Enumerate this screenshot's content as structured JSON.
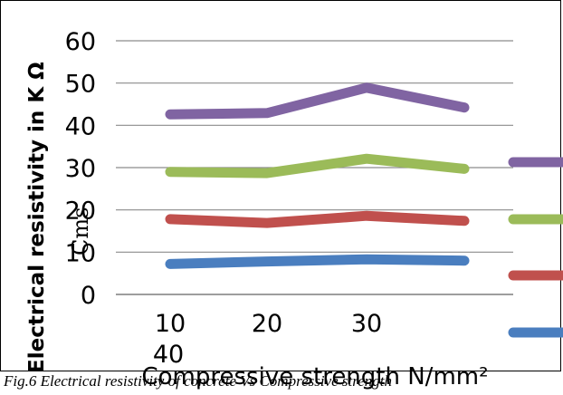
{
  "chart_data": {
    "type": "line",
    "xlabel": "Compressive strength N/mm²",
    "ylabel": "Electrical resistivity in K Ω",
    "ylabel_unit": "Cms",
    "y_ticks": [
      "0",
      "10",
      "20",
      "30",
      "40",
      "50",
      "60"
    ],
    "x_tick_labels": [
      "10",
      "20",
      "30"
    ],
    "x_tick_overflow": "40",
    "ylim": [
      0,
      60
    ],
    "grid": true,
    "legend_position": "right",
    "series": [
      {
        "values": [
          7.2,
          7.8,
          8.3,
          8.0
        ],
        "color": "#4a7ebf"
      },
      {
        "values": [
          17.8,
          16.9,
          18.6,
          17.4
        ],
        "color": "#c0504d"
      },
      {
        "values": [
          29.0,
          28.7,
          32.1,
          29.7
        ],
        "color": "#9bbb59"
      },
      {
        "values": [
          42.6,
          42.9,
          48.9,
          44.2
        ],
        "color": "#8064a2"
      }
    ]
  },
  "caption": "Fig.6 Electrical resistivity of concrete Vs Compressive strength"
}
